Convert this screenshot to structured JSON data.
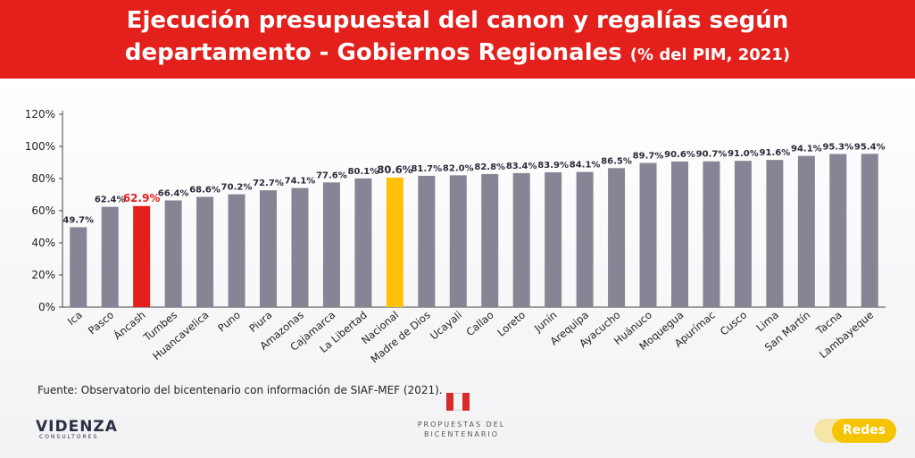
{
  "header": {
    "title_line1": "Ejecución presupuestal del canon y regalías según",
    "title_line2": "departamento - Gobiernos Regionales",
    "title_unit": "(% del PIM, 2021)"
  },
  "chart_data": {
    "type": "bar",
    "categories": [
      "Ica",
      "Pasco",
      "Áncash",
      "Tumbes",
      "Huancavelica",
      "Puno",
      "Piura",
      "Amazonas",
      "Cajamarca",
      "La Libertad",
      "Nacional",
      "Madre de Dios",
      "Ucayali",
      "Callao",
      "Loreto",
      "Junín",
      "Arequipa",
      "Ayacucho",
      "Huánuco",
      "Moquegua",
      "Apurímac",
      "Cusco",
      "Lima",
      "San Martín",
      "Tacna",
      "Lambayeque"
    ],
    "values": [
      49.7,
      62.4,
      62.9,
      66.4,
      68.6,
      70.2,
      72.7,
      74.1,
      77.6,
      80.1,
      80.6,
      81.7,
      82.0,
      82.8,
      83.4,
      83.9,
      84.1,
      86.5,
      89.7,
      90.6,
      90.7,
      91.0,
      91.6,
      94.1,
      95.3,
      95.4
    ],
    "value_labels": [
      "49.7%",
      "62.4%",
      "62.9%",
      "66.4%",
      "68.6%",
      "70.2%",
      "72.7%",
      "74.1%",
      "77.6%",
      "80.1%",
      "80.6%",
      "81.7%",
      "82.0%",
      "82.8%",
      "83.4%",
      "83.9%",
      "84.1%",
      "86.5%",
      "89.7%",
      "90.6%",
      "90.7%",
      "91.0%",
      "91.6%",
      "94.1%",
      "95.3%",
      "95.4%"
    ],
    "highlight": {
      "Áncash": "#e3201b",
      "Nacional": "#ffc107"
    },
    "bar_color": "#878495",
    "ylim": [
      0,
      120
    ],
    "yticks": [
      0,
      20,
      40,
      60,
      80,
      100,
      120
    ],
    "ytick_labels": [
      "0%",
      "20%",
      "40%",
      "60%",
      "80%",
      "100%",
      "120%"
    ],
    "grid": false
  },
  "footer": {
    "source": "Fuente: Observatorio del bicentenario con información de SIAF-MEF (2021).",
    "logo_videnza": "VIDENZA",
    "logo_videnza_sub": "CONSULTORES",
    "logo_pb_line1": "PROPUESTAS DEL",
    "logo_pb_line2": "BICENTENARIO",
    "redes_label": "Redes"
  },
  "colors": {
    "header_bg": "#e3201b",
    "accent_yellow": "#ffc107"
  }
}
